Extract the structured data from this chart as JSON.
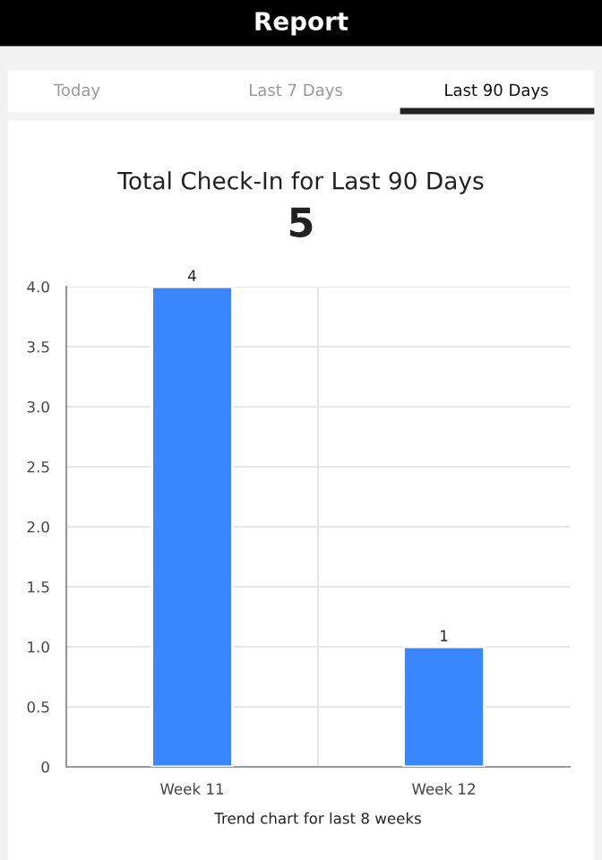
{
  "chart_data": {
    "type": "bar",
    "title": "Total Check-In for Last 90 Days",
    "subtitle": "5",
    "xlabel": "Trend chart for last 8 weeks",
    "annotations": [
      "Report",
      "Today",
      "Last 7 Days",
      "Last 90 Days"
    ],
    "categories": [
      "Week 11",
      "Week 12"
    ],
    "values": [
      4,
      1
    ],
    "color": "#3a86ff",
    "ylim": [
      0,
      4
    ],
    "yticks": [
      0,
      0.5,
      {
        "value": 1,
        "label": "1.0"
      },
      1.5,
      {
        "value": 2,
        "label": "2.0"
      },
      2.5,
      {
        "value": 3,
        "label": "3.0"
      },
      3.5,
      {
        "value": 4,
        "label": "4.0"
      }
    ],
    "grid": true,
    "data_labels": true
  }
}
